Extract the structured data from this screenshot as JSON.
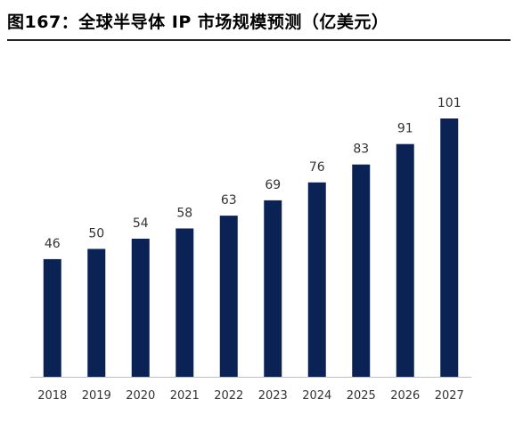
{
  "figure": {
    "title": "图167：全球半导体 IP 市场规模预测（亿美元）"
  },
  "colors": {
    "bar": "#0b2255",
    "axis": "#bfbfbf",
    "rule": "#222222"
  },
  "chart_data": {
    "type": "bar",
    "categories": [
      "2018",
      "2019",
      "2020",
      "2021",
      "2022",
      "2023",
      "2024",
      "2025",
      "2026",
      "2027"
    ],
    "values": [
      46,
      50,
      54,
      58,
      63,
      69,
      76,
      83,
      91,
      101
    ],
    "value_labels": [
      "46",
      "50",
      "54",
      "58",
      "63",
      "69",
      "76",
      "83",
      "91",
      "101"
    ],
    "ylim": [
      0,
      101
    ],
    "grid": false,
    "legend": "none",
    "data_labels": "above-bars"
  }
}
